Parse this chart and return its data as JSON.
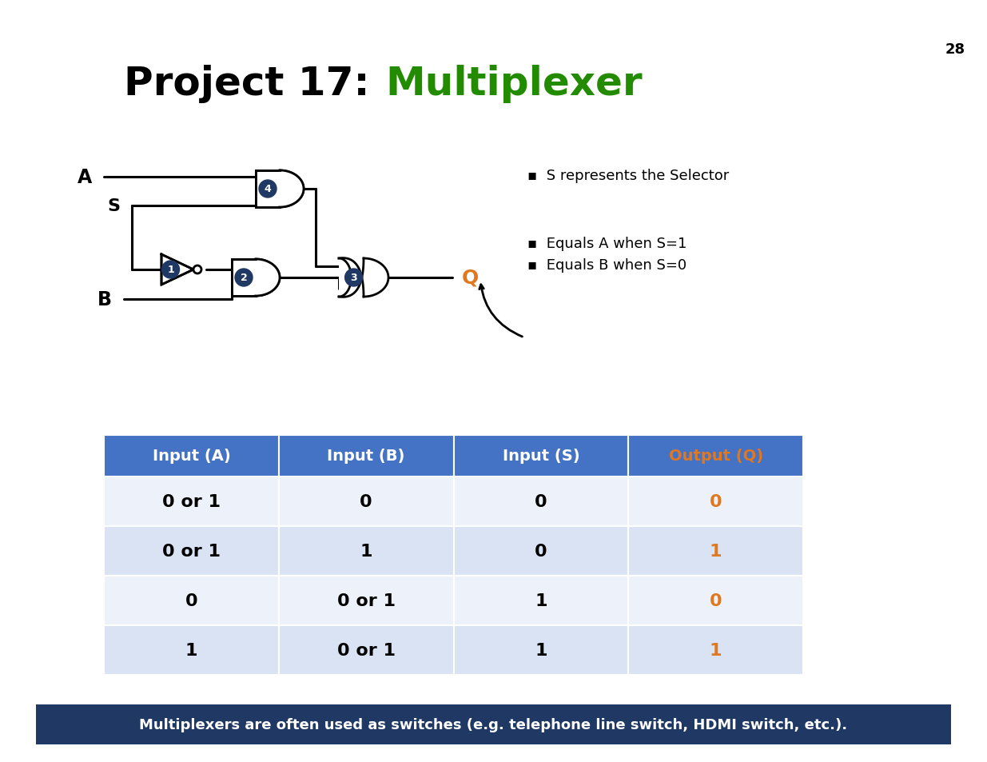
{
  "title_black": "Project 17: ",
  "title_green": "Multiplexer",
  "page_number": "28",
  "background_color": "#ffffff",
  "title_fontsize": 36,
  "green_color": "#228B00",
  "orange_color": "#E07820",
  "dark_blue": "#1F3864",
  "table_header_bg": "#4472C4",
  "table_row_light": "#DAE3F3",
  "table_row_lighter": "#EDF2FA",
  "table_header_text": "#ffffff",
  "table_cols": [
    "Input (A)",
    "Input (B)",
    "Input (S)",
    "Output (Q)"
  ],
  "table_data": [
    [
      "0 or 1",
      "0",
      "0",
      "0"
    ],
    [
      "0 or 1",
      "1",
      "0",
      "1"
    ],
    [
      "0",
      "0 or 1",
      "1",
      "0"
    ],
    [
      "1",
      "0 or 1",
      "1",
      "1"
    ]
  ],
  "bullet_text": [
    "S represents the Selector",
    "Equals A when S=1",
    "Equals B when S=0"
  ],
  "footer_text": "Multiplexers are often used as switches (e.g. telephone line switch, HDMI switch, etc.).",
  "footer_bg": "#1F3864",
  "footer_text_color": "#ffffff"
}
